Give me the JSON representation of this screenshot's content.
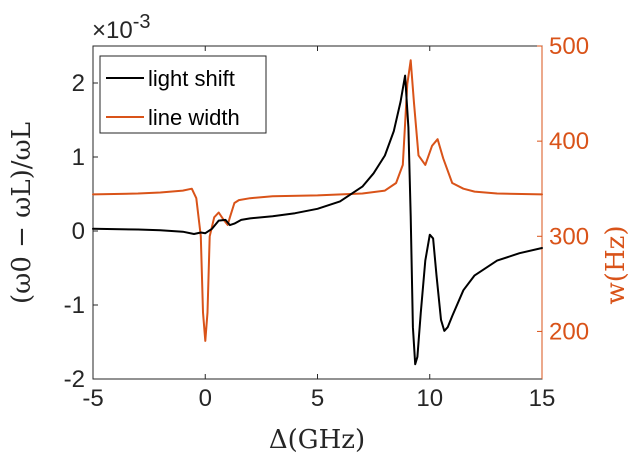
{
  "chart_data": {
    "type": "line",
    "title": "",
    "xlabel": "Δ(GHz)",
    "ylabel_left": "(ω0 − ωL)/ωL",
    "ylabel_right": "w(Hz)",
    "exponent_label": "×10",
    "exponent_power": "-3",
    "xlim": [
      -5,
      15
    ],
    "ylim_left": [
      -2,
      2.5
    ],
    "ylim_right": [
      150,
      500
    ],
    "x_ticks": [
      "-5",
      "0",
      "5",
      "10",
      "15"
    ],
    "y_left_ticks": [
      "-2",
      "-1",
      "0",
      "1",
      "2"
    ],
    "y_right_ticks": [
      "200",
      "300",
      "400",
      "500"
    ],
    "legend_position": "top-left",
    "grid": false,
    "colors": {
      "light_shift": "#000000",
      "line_width": "#D95319"
    },
    "series": [
      {
        "name": "light shift",
        "axis": "left",
        "x": [
          -5,
          -3,
          -2,
          -1,
          -0.5,
          -0.2,
          0,
          0.3,
          0.6,
          0.9,
          1.1,
          1.3,
          1.6,
          2,
          3,
          4,
          5,
          6,
          7,
          7.5,
          8,
          8.4,
          8.7,
          8.9,
          9.05,
          9.15,
          9.25,
          9.35,
          9.45,
          9.6,
          9.8,
          10.0,
          10.15,
          10.3,
          10.5,
          10.65,
          10.8,
          11,
          11.5,
          12,
          13,
          14,
          15
        ],
        "y": [
          0.03,
          0.02,
          0.01,
          -0.01,
          -0.04,
          -0.02,
          -0.03,
          0.03,
          0.14,
          0.15,
          0.08,
          0.1,
          0.15,
          0.17,
          0.2,
          0.24,
          0.3,
          0.4,
          0.6,
          0.78,
          1.02,
          1.35,
          1.75,
          2.1,
          1.4,
          0.2,
          -1.3,
          -1.8,
          -1.7,
          -1.1,
          -0.4,
          -0.05,
          -0.1,
          -0.6,
          -1.2,
          -1.35,
          -1.3,
          -1.15,
          -0.8,
          -0.6,
          -0.4,
          -0.3,
          -0.23
        ]
      },
      {
        "name": "line width",
        "axis": "right",
        "x": [
          -5,
          -3,
          -2,
          -1,
          -0.6,
          -0.4,
          -0.2,
          -0.1,
          0,
          0.1,
          0.2,
          0.4,
          0.6,
          0.8,
          1.0,
          1.1,
          1.3,
          1.5,
          2,
          3,
          5,
          7,
          8,
          8.5,
          8.8,
          9.0,
          9.15,
          9.3,
          9.5,
          9.8,
          10.1,
          10.35,
          10.6,
          11,
          11.5,
          12,
          13,
          15
        ],
        "y": [
          344,
          345,
          346,
          348,
          350,
          340,
          300,
          220,
          190,
          220,
          300,
          320,
          325,
          318,
          312,
          320,
          335,
          338,
          340,
          342,
          343,
          345,
          348,
          356,
          375,
          460,
          485,
          440,
          385,
          375,
          395,
          402,
          382,
          356,
          350,
          347,
          345,
          344
        ]
      }
    ]
  }
}
